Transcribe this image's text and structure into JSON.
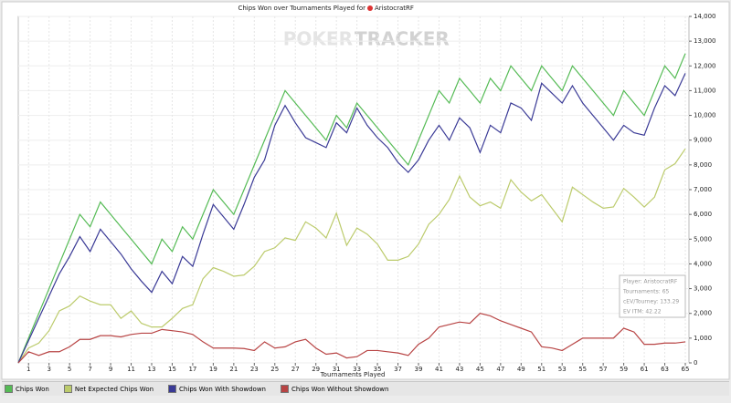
{
  "chart_data": {
    "type": "line",
    "title": "Chips Won over Tournaments Played for",
    "player": "AristocratRF",
    "watermark": [
      "POKER",
      "TRACKER"
    ],
    "x_label": "Tournaments Played",
    "x": [
      0,
      1,
      2,
      3,
      4,
      5,
      6,
      7,
      8,
      9,
      10,
      11,
      12,
      13,
      14,
      15,
      16,
      17,
      18,
      19,
      20,
      21,
      22,
      23,
      24,
      25,
      26,
      27,
      28,
      29,
      30,
      31,
      32,
      33,
      34,
      35,
      36,
      37,
      38,
      39,
      40,
      41,
      42,
      43,
      44,
      45,
      46,
      47,
      48,
      49,
      50,
      51,
      52,
      53,
      54,
      55,
      56,
      57,
      58,
      59,
      60,
      61,
      62,
      63,
      64,
      65
    ],
    "xlim": [
      0,
      65
    ],
    "xticks": [
      1,
      3,
      5,
      7,
      9,
      11,
      13,
      15,
      17,
      19,
      21,
      23,
      25,
      27,
      29,
      31,
      33,
      35,
      37,
      39,
      41,
      43,
      45,
      47,
      49,
      51,
      53,
      55,
      57,
      59,
      61,
      63,
      65
    ],
    "ylim": [
      0,
      14000
    ],
    "yticks": [
      0,
      {
        "value": 1000,
        "label": "1,000"
      },
      {
        "value": 2000,
        "label": "2,000"
      },
      {
        "value": 3000,
        "label": "3,000"
      },
      {
        "value": 4000,
        "label": "4,000"
      },
      {
        "value": 5000,
        "label": "5,000"
      },
      {
        "value": 6000,
        "label": "6,000"
      },
      {
        "value": 7000,
        "label": "7,000"
      },
      {
        "value": 8000,
        "label": "8,000"
      },
      {
        "value": 9000,
        "label": "9,000"
      },
      {
        "value": 10000,
        "label": "10,000"
      },
      {
        "value": 11000,
        "label": "11,000"
      },
      {
        "value": 12000,
        "label": "12,000"
      },
      {
        "value": 13000,
        "label": "13,000"
      },
      {
        "value": 14000,
        "label": "14,000"
      }
    ],
    "grid": true,
    "series": [
      {
        "name": "Chips Won",
        "color": "#55bb55",
        "values": [
          0,
          1000,
          2000,
          3000,
          4000,
          5000,
          6000,
          5500,
          6500,
          6000,
          5500,
          5000,
          4500,
          4000,
          5000,
          4500,
          5500,
          5000,
          6000,
          7000,
          6500,
          6000,
          7000,
          8000,
          9000,
          10000,
          11000,
          10500,
          10000,
          9500,
          9000,
          10000,
          9500,
          10500,
          10000,
          9500,
          9000,
          8500,
          8000,
          9000,
          10000,
          11000,
          10500,
          11500,
          11000,
          10500,
          11500,
          11000,
          12000,
          11500,
          11000,
          12000,
          11500,
          11000,
          12000,
          11500,
          11000,
          10500,
          10000,
          11000,
          10500,
          10000,
          11000,
          12000,
          11500,
          12500
        ]
      },
      {
        "name": "Net Expected Chips Won",
        "color": "#bccb6c",
        "values": [
          0,
          600,
          800,
          1300,
          2100,
          2300,
          2700,
          2500,
          2350,
          2350,
          1800,
          2100,
          1600,
          1450,
          1450,
          1800,
          2200,
          2350,
          3400,
          3850,
          3700,
          3500,
          3550,
          3900,
          4500,
          4650,
          5050,
          4950,
          5700,
          5450,
          5050,
          6050,
          4750,
          5450,
          5200,
          4800,
          4150,
          4150,
          4300,
          4800,
          5600,
          6000,
          6600,
          7550,
          6700,
          6350,
          6500,
          6250,
          7400,
          6900,
          6550,
          6800,
          6250,
          5700,
          7100,
          6800,
          6500,
          6250,
          6300,
          7050,
          6700,
          6300,
          6700,
          7800,
          8050,
          8650
        ]
      },
      {
        "name": "Chips Won With Showdown",
        "color": "#3a3a96",
        "values": [
          0,
          900,
          1800,
          2700,
          3600,
          4300,
          5100,
          4500,
          5400,
          4900,
          4400,
          3800,
          3300,
          2850,
          3700,
          3200,
          4300,
          3900,
          5200,
          6400,
          5900,
          5400,
          6400,
          7500,
          8200,
          9600,
          10400,
          9700,
          9100,
          8900,
          8700,
          9700,
          9300,
          10300,
          9600,
          9100,
          8700,
          8100,
          7700,
          8200,
          9000,
          9600,
          9000,
          9900,
          9500,
          8500,
          9600,
          9300,
          10500,
          10300,
          9800,
          11300,
          10900,
          10500,
          11200,
          10500,
          10000,
          9500,
          9000,
          9600,
          9300,
          9200,
          10300,
          11200,
          10800,
          11700
        ]
      },
      {
        "name": "Chips Won Without Showdown",
        "color": "#b84444",
        "values": [
          0,
          450,
          300,
          450,
          450,
          650,
          950,
          950,
          1100,
          1100,
          1050,
          1150,
          1200,
          1200,
          1350,
          1300,
          1250,
          1150,
          850,
          600,
          600,
          600,
          580,
          500,
          850,
          600,
          650,
          850,
          950,
          600,
          350,
          400,
          200,
          250,
          500,
          500,
          450,
          400,
          300,
          750,
          1000,
          1450,
          1550,
          1650,
          1600,
          2000,
          1900,
          1700,
          1550,
          1400,
          1250,
          650,
          600,
          500,
          750,
          1000,
          1000,
          1000,
          1000,
          1400,
          1250,
          750,
          750,
          800,
          800,
          850
        ]
      }
    ],
    "annotations": [
      "Player: AristocratRF",
      "Tournaments: 65",
      "cEV/Tourney: 133.29",
      "EV ITM: 42.22"
    ]
  }
}
